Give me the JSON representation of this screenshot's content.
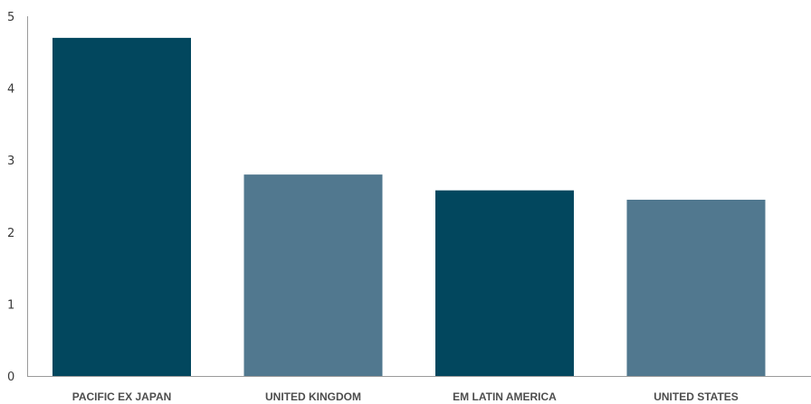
{
  "chart_data": {
    "type": "bar",
    "title": "",
    "xlabel": "",
    "ylabel": "",
    "categories": [
      "PACIFIC EX JAPAN",
      "UNITED KINGDOM",
      "EM LATIN AMERICA",
      "UNITED STATES"
    ],
    "values": [
      4.7,
      2.8,
      2.58,
      2.45
    ],
    "bar_colors": [
      "#02475e",
      "#51788f",
      "#02475e",
      "#51788f"
    ],
    "ylim": [
      0,
      5
    ],
    "yticks": [
      "0",
      "1",
      "2",
      "3",
      "4",
      "5"
    ],
    "grid": false,
    "legend": "none"
  }
}
